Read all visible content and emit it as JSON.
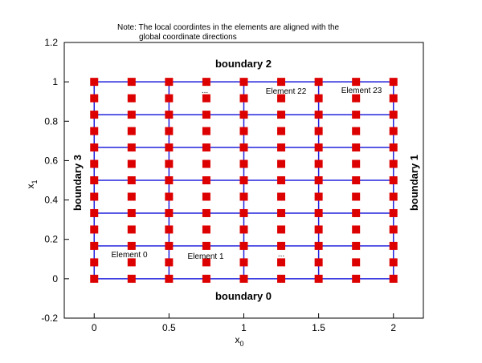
{
  "chart_data": {
    "type": "mesh",
    "title": [
      "Note: The local coordintes in the elements are aligned with the",
      "global coordinate directions"
    ],
    "xlabel": "x",
    "xlabel_sub": "0",
    "ylabel": "x",
    "ylabel_sub": "1",
    "xlim": [
      -0.2,
      2.2
    ],
    "ylim": [
      -0.2,
      1.2
    ],
    "xticks": [
      0,
      0.5,
      1,
      1.5,
      2
    ],
    "yticks": [
      -0.2,
      0,
      0.2,
      0.4,
      0.6,
      0.8,
      1,
      1.2
    ],
    "element_x_edges": [
      0,
      0.5,
      1,
      1.5,
      2
    ],
    "element_y_edges": [
      0,
      0.1667,
      0.3333,
      0.5,
      0.6667,
      0.8333,
      1
    ],
    "node_x": [
      0,
      0.25,
      0.5,
      0.75,
      1,
      1.25,
      1.5,
      1.75,
      2
    ],
    "node_y": [
      0,
      0.0833,
      0.1667,
      0.25,
      0.3333,
      0.4167,
      0.5,
      0.5833,
      0.6667,
      0.75,
      0.8333,
      0.9167,
      1
    ],
    "line_color": "#2222dd",
    "node_color": "#dd0000",
    "annotations": [
      "boundary 2",
      "boundary 0",
      "boundary 3",
      "boundary 1",
      "Element 0",
      "Element 1",
      "Element 22",
      "Element 23",
      "...",
      "..."
    ]
  }
}
